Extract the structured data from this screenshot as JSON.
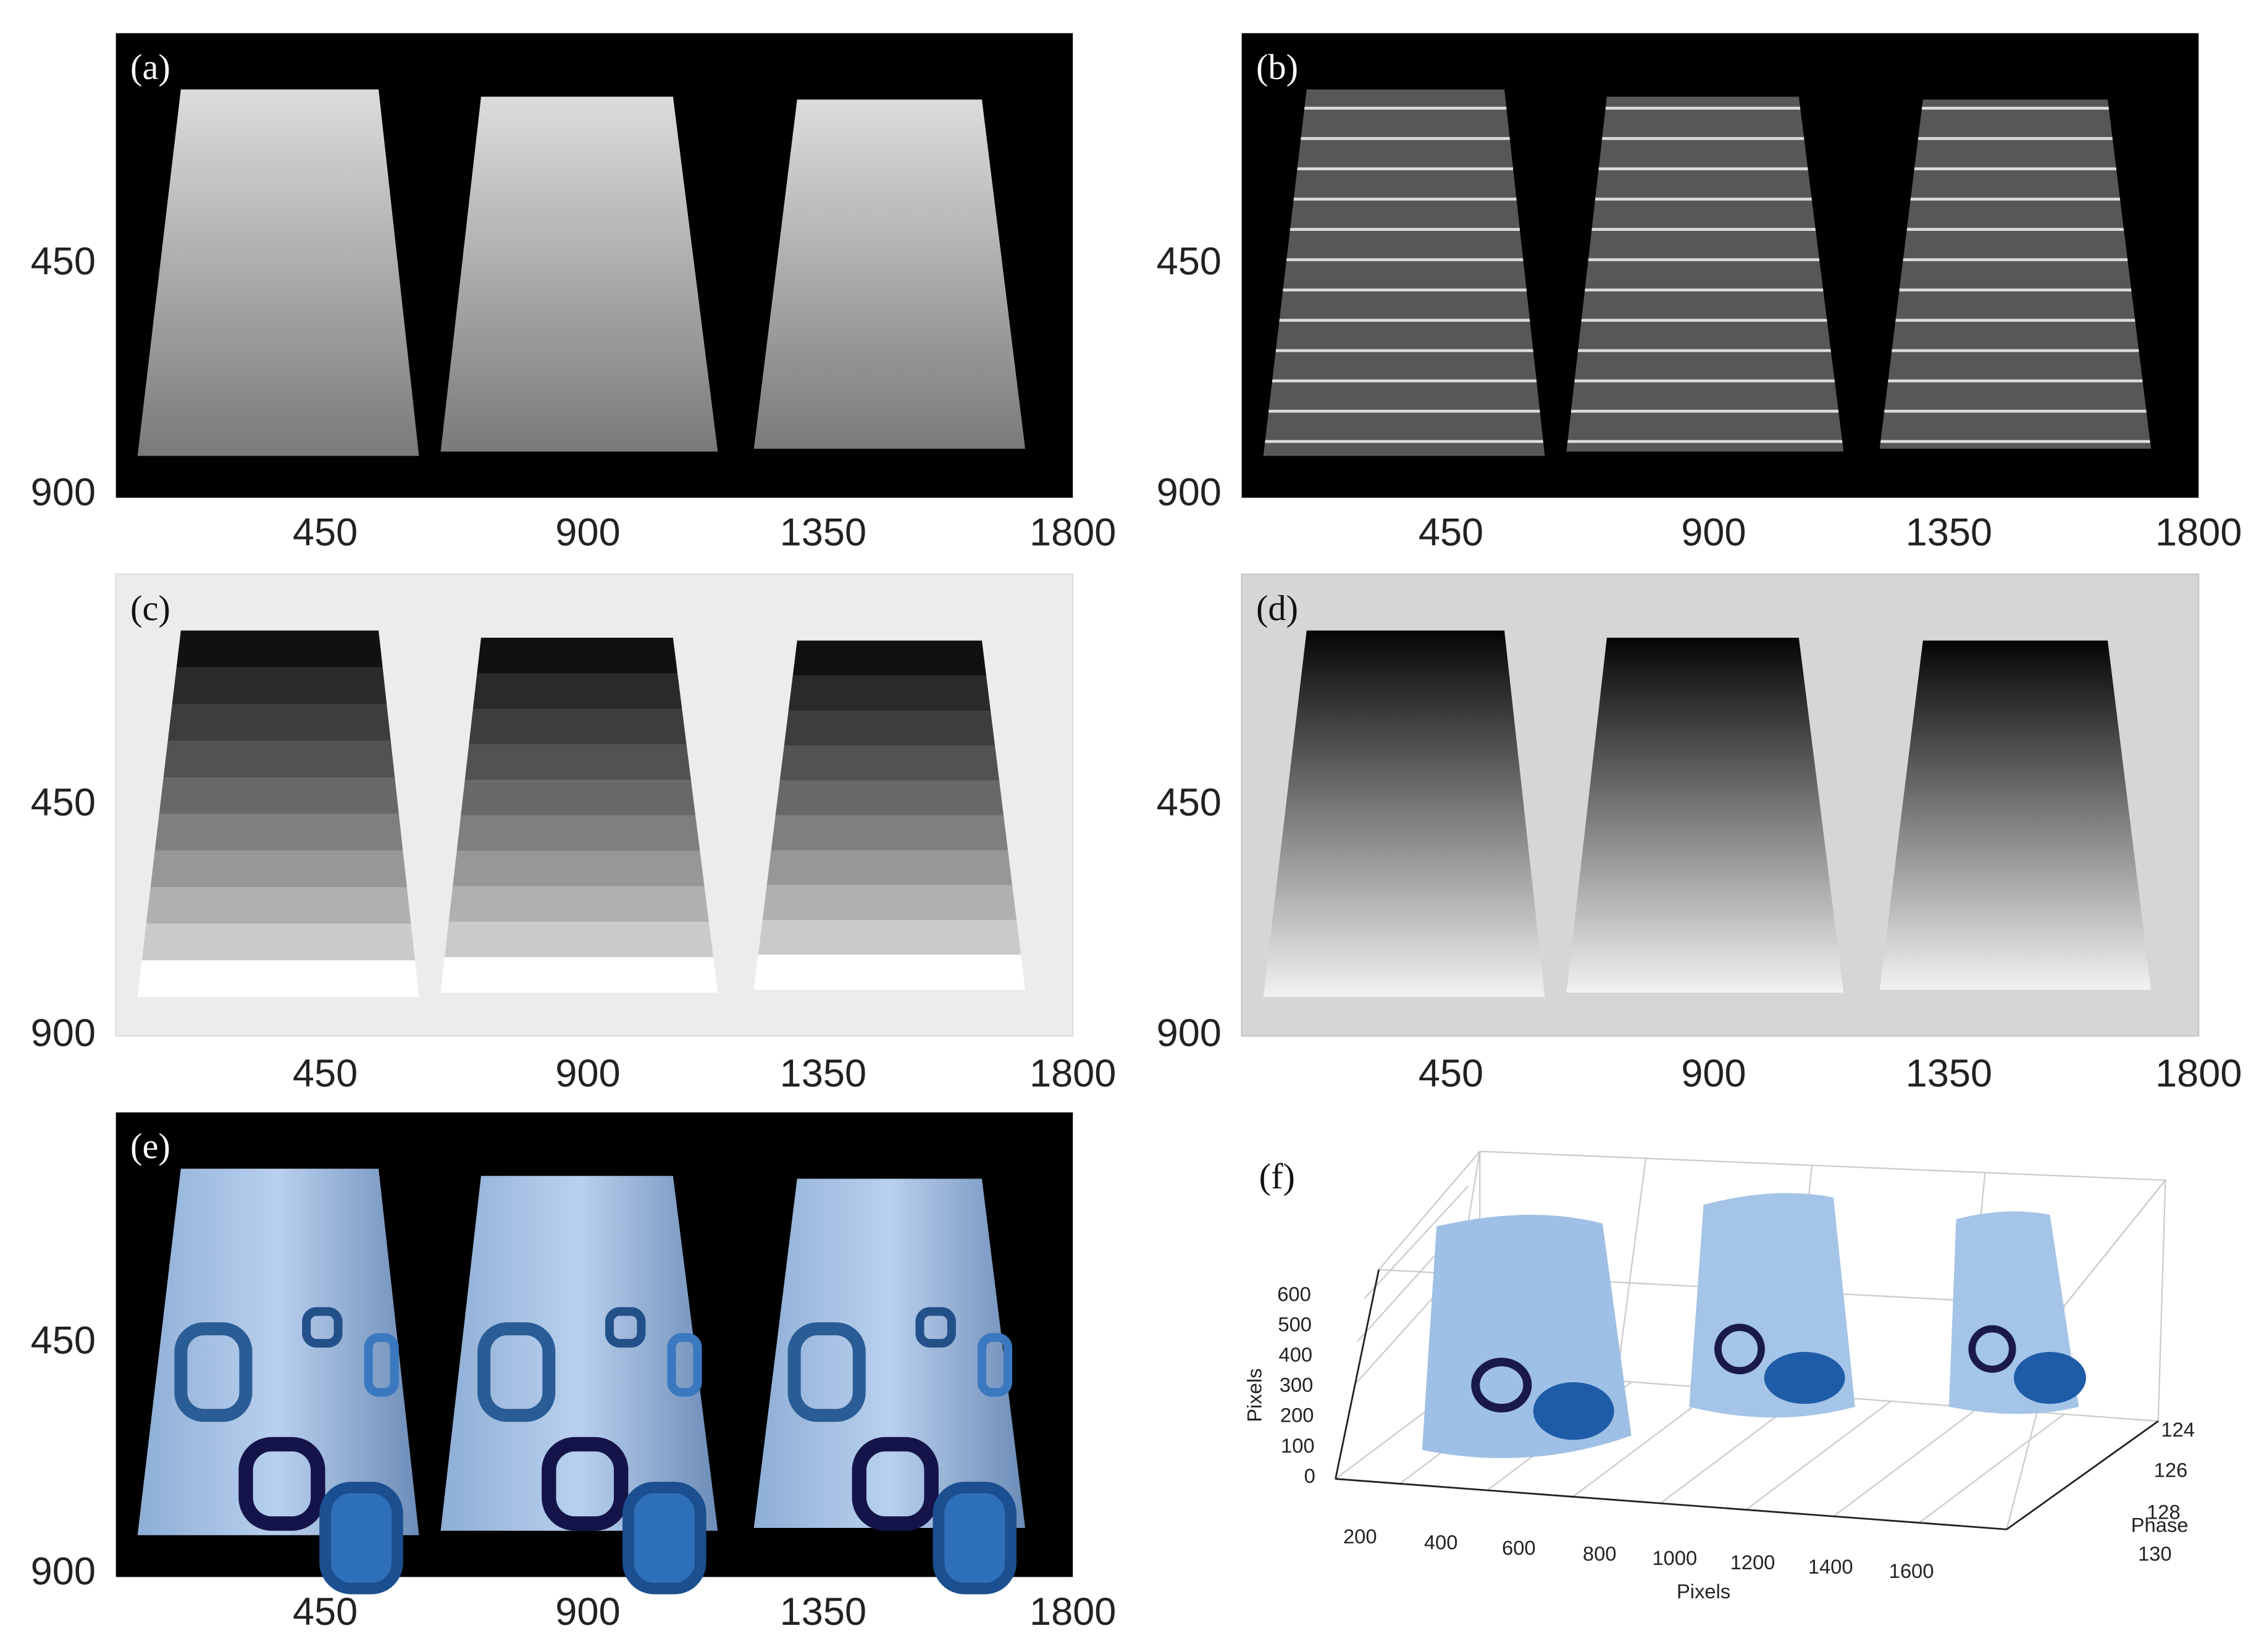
{
  "panels": [
    {
      "label": "(a)",
      "yticks": [
        "450",
        "900"
      ],
      "xticks": [
        "450",
        "900",
        "1350",
        "1800"
      ]
    },
    {
      "label": "(b)",
      "yticks": [
        "450",
        "900"
      ],
      "xticks": [
        "450",
        "900",
        "1350",
        "1800"
      ]
    },
    {
      "label": "(c)",
      "yticks": [
        "450",
        "900"
      ],
      "xticks": [
        "450",
        "900",
        "1350",
        "1800"
      ]
    },
    {
      "label": "(d)",
      "yticks": [
        "450",
        "900"
      ],
      "xticks": [
        "450",
        "900",
        "1350",
        "1800"
      ]
    },
    {
      "label": "(e)",
      "yticks": [
        "450",
        "900"
      ],
      "xticks": [
        "450",
        "900",
        "1350",
        "1800"
      ]
    },
    {
      "label": "(f)",
      "z_axis_label": "Pixels",
      "zticks": [
        "600",
        "500",
        "400",
        "300",
        "200",
        "100",
        "0"
      ],
      "x_axis_label": "Pixels",
      "xticks": [
        "200",
        "400",
        "600",
        "800",
        "1000",
        "1200",
        "1400",
        "1600"
      ],
      "y_axis_label": "Phase",
      "yticks": [
        "124",
        "126",
        "128",
        "130"
      ]
    }
  ]
}
